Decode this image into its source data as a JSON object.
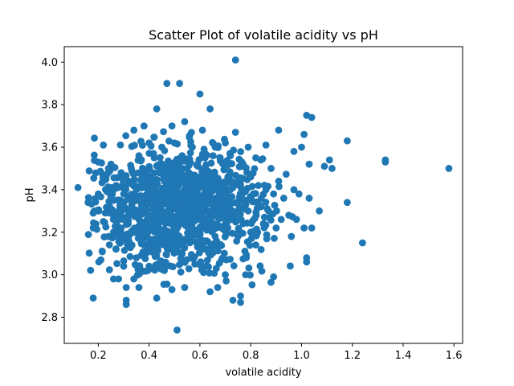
{
  "chart_data": {
    "type": "scatter",
    "title": "Scatter Plot of volatile acidity vs pH",
    "xlabel": "volatile acidity",
    "ylabel": "pH",
    "xlim": [
      0.066,
      1.634
    ],
    "ylim": [
      2.677,
      4.073
    ],
    "xticks": [
      0.2,
      0.4,
      0.6,
      0.8,
      1.0,
      1.2,
      1.4,
      1.6
    ],
    "xtick_labels": [
      "0.2",
      "0.4",
      "0.6",
      "0.8",
      "1.0",
      "1.2",
      "1.4",
      "1.6"
    ],
    "yticks": [
      2.8,
      3.0,
      3.2,
      3.4,
      3.6,
      3.8,
      4.0
    ],
    "ytick_labels": [
      "2.8",
      "3.0",
      "3.2",
      "3.4",
      "3.6",
      "3.8",
      "4.0"
    ],
    "grid": false,
    "marker_color": "#1f77b4",
    "points": [
      [
        0.12,
        3.41
      ],
      [
        0.16,
        3.34
      ],
      [
        0.18,
        3.29
      ],
      [
        0.18,
        2.89
      ],
      [
        0.18,
        3.22
      ],
      [
        0.2,
        3.53
      ],
      [
        0.2,
        3.38
      ],
      [
        0.21,
        3.07
      ],
      [
        0.22,
        3.61
      ],
      [
        0.22,
        3.25
      ],
      [
        0.23,
        3.45
      ],
      [
        0.24,
        3.5
      ],
      [
        0.24,
        3.18
      ],
      [
        0.25,
        3.41
      ],
      [
        0.25,
        3.52
      ],
      [
        0.26,
        3.2
      ],
      [
        0.26,
        3.35
      ],
      [
        0.26,
        2.98
      ],
      [
        0.27,
        3.42
      ],
      [
        0.27,
        3.12
      ],
      [
        0.28,
        3.3
      ],
      [
        0.28,
        2.98
      ],
      [
        0.29,
        3.48
      ],
      [
        0.29,
        3.22
      ],
      [
        0.3,
        3.38
      ],
      [
        0.3,
        3.04
      ],
      [
        0.31,
        3.27
      ],
      [
        0.31,
        2.86
      ],
      [
        0.31,
        2.88
      ],
      [
        0.31,
        2.94
      ],
      [
        0.32,
        3.44
      ],
      [
        0.32,
        3.16
      ],
      [
        0.33,
        3.31
      ],
      [
        0.33,
        3.5
      ],
      [
        0.34,
        3.68
      ],
      [
        0.34,
        3.2
      ],
      [
        0.34,
        2.98
      ],
      [
        0.35,
        3.4
      ],
      [
        0.35,
        3.08
      ],
      [
        0.36,
        3.56
      ],
      [
        0.36,
        3.26
      ],
      [
        0.36,
        2.94
      ],
      [
        0.37,
        3.45
      ],
      [
        0.37,
        3.33
      ],
      [
        0.38,
        3.7
      ],
      [
        0.38,
        3.14
      ],
      [
        0.39,
        3.29
      ],
      [
        0.39,
        3.48
      ],
      [
        0.4,
        3.38
      ],
      [
        0.4,
        3.62
      ],
      [
        0.4,
        3.04
      ],
      [
        0.41,
        3.22
      ],
      [
        0.41,
        3.42
      ],
      [
        0.42,
        3.55
      ],
      [
        0.42,
        3.1
      ],
      [
        0.43,
        3.78
      ],
      [
        0.43,
        3.3
      ],
      [
        0.43,
        2.89
      ],
      [
        0.44,
        3.48
      ],
      [
        0.44,
        3.18
      ],
      [
        0.45,
        3.35
      ],
      [
        0.45,
        3.6
      ],
      [
        0.46,
        3.25
      ],
      [
        0.46,
        3.02
      ],
      [
        0.47,
        3.9
      ],
      [
        0.47,
        3.44
      ],
      [
        0.48,
        3.32
      ],
      [
        0.48,
        3.52
      ],
      [
        0.48,
        3.12
      ],
      [
        0.49,
        3.7
      ],
      [
        0.49,
        2.93
      ],
      [
        0.5,
        3.38
      ],
      [
        0.5,
        3.62
      ],
      [
        0.5,
        3.2
      ],
      [
        0.51,
        3.48
      ],
      [
        0.51,
        2.74
      ],
      [
        0.52,
        3.9
      ],
      [
        0.52,
        3.3
      ],
      [
        0.53,
        3.56
      ],
      [
        0.53,
        3.1
      ],
      [
        0.54,
        3.72
      ],
      [
        0.54,
        3.4
      ],
      [
        0.54,
        2.94
      ],
      [
        0.55,
        3.25
      ],
      [
        0.55,
        3.5
      ],
      [
        0.56,
        3.35
      ],
      [
        0.56,
        3.15
      ],
      [
        0.57,
        3.6
      ],
      [
        0.57,
        3.42
      ],
      [
        0.58,
        3.28
      ],
      [
        0.58,
        3.05
      ],
      [
        0.59,
        3.52
      ],
      [
        0.59,
        3.38
      ],
      [
        0.6,
        3.85
      ],
      [
        0.6,
        3.22
      ],
      [
        0.6,
        3.46
      ],
      [
        0.61,
        3.68
      ],
      [
        0.61,
        3.32
      ],
      [
        0.62,
        3.12
      ],
      [
        0.62,
        3.55
      ],
      [
        0.63,
        3.4
      ],
      [
        0.63,
        3.26
      ],
      [
        0.64,
        3.78
      ],
      [
        0.64,
        2.92
      ],
      [
        0.65,
        3.48
      ],
      [
        0.65,
        3.34
      ],
      [
        0.66,
        3.6
      ],
      [
        0.66,
        3.18
      ],
      [
        0.67,
        3.42
      ],
      [
        0.67,
        2.94
      ],
      [
        0.68,
        3.28
      ],
      [
        0.68,
        3.55
      ],
      [
        0.69,
        3.38
      ],
      [
        0.69,
        3.08
      ],
      [
        0.7,
        3.62
      ],
      [
        0.7,
        3.32
      ],
      [
        0.7,
        3.0
      ],
      [
        0.71,
        3.46
      ],
      [
        0.71,
        3.22
      ],
      [
        0.72,
        3.4
      ],
      [
        0.72,
        3.56
      ],
      [
        0.73,
        3.3
      ],
      [
        0.73,
        2.88
      ],
      [
        0.74,
        4.01
      ],
      [
        0.74,
        3.67
      ],
      [
        0.75,
        3.44
      ],
      [
        0.75,
        3.18
      ],
      [
        0.76,
        3.35
      ],
      [
        0.76,
        2.87
      ],
      [
        0.76,
        2.9
      ],
      [
        0.77,
        3.52
      ],
      [
        0.77,
        3.24
      ],
      [
        0.78,
        3.4
      ],
      [
        0.78,
        3.0
      ],
      [
        0.79,
        3.6
      ],
      [
        0.79,
        3.3
      ],
      [
        0.8,
        3.46
      ],
      [
        0.8,
        3.2
      ],
      [
        0.81,
        3.38
      ],
      [
        0.82,
        3.55
      ],
      [
        0.82,
        3.14
      ],
      [
        0.83,
        3.42
      ],
      [
        0.84,
        3.32
      ],
      [
        0.84,
        3.54
      ],
      [
        0.85,
        3.24
      ],
      [
        0.86,
        3.61
      ],
      [
        0.86,
        3.4
      ],
      [
        0.87,
        3.3
      ],
      [
        0.88,
        3.5
      ],
      [
        0.89,
        2.99
      ],
      [
        0.89,
        3.38
      ],
      [
        0.9,
        3.22
      ],
      [
        0.91,
        3.68
      ],
      [
        0.91,
        3.44
      ],
      [
        0.92,
        3.26
      ],
      [
        0.93,
        3.36
      ],
      [
        0.95,
        3.28
      ],
      [
        0.96,
        3.18
      ],
      [
        0.97,
        3.58
      ],
      [
        0.97,
        3.4
      ],
      [
        0.98,
        3.26
      ],
      [
        0.99,
        3.38
      ],
      [
        1.0,
        3.6
      ],
      [
        1.01,
        3.22
      ],
      [
        1.01,
        3.66
      ],
      [
        1.02,
        3.08
      ],
      [
        1.02,
        3.06
      ],
      [
        1.02,
        3.75
      ],
      [
        1.03,
        3.52
      ],
      [
        1.03,
        3.36
      ],
      [
        1.04,
        3.22
      ],
      [
        1.04,
        3.74
      ],
      [
        1.07,
        3.3
      ],
      [
        1.09,
        3.51
      ],
      [
        1.11,
        3.54
      ],
      [
        1.12,
        3.5
      ],
      [
        1.18,
        3.63
      ],
      [
        1.18,
        3.34
      ],
      [
        1.24,
        3.15
      ],
      [
        1.33,
        3.54
      ],
      [
        1.33,
        3.53
      ],
      [
        1.58,
        3.5
      ]
    ],
    "points_cloud_note": ""
  }
}
